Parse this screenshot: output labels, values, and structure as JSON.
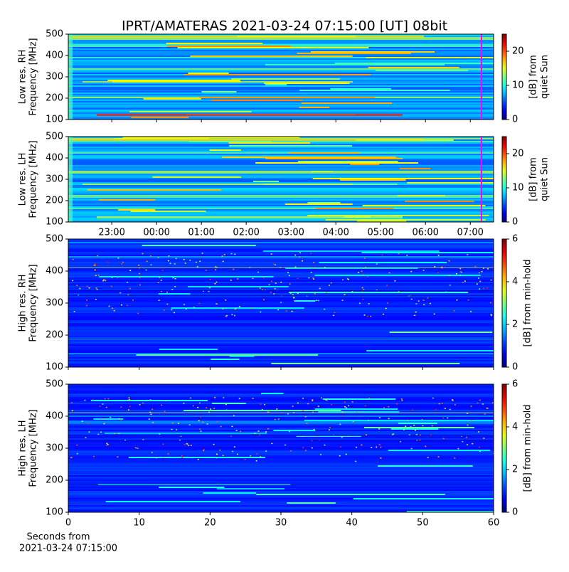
{
  "title": "IPRT/AMATERAS 2021-03-24 07:15:00 [UT]   08bit",
  "chart_data": [
    {
      "type": "heatmap",
      "ylabel": [
        "Low res. RH",
        "Frequency [MHz]"
      ],
      "ylim": [
        100,
        500
      ],
      "yticks": [
        100,
        200,
        300,
        400,
        500
      ],
      "colormap": "jet",
      "clim": [
        0,
        25
      ],
      "cticks": [
        0,
        10,
        20
      ],
      "colorbar_label": [
        "[dB] from",
        "quiet Sun"
      ],
      "marker": {
        "x": 31.25,
        "color": "#ff00ff"
      }
    },
    {
      "type": "heatmap",
      "ylabel": [
        "Low res. LH",
        "Frequency [MHz]"
      ],
      "ylim": [
        100,
        500
      ],
      "yticks": [
        100,
        200,
        300,
        400,
        500
      ],
      "xlim": [
        22.03,
        31.52
      ],
      "xticks": [
        {
          "value": 23,
          "label": "23:00"
        },
        {
          "value": 24,
          "label": "00:00"
        },
        {
          "value": 25,
          "label": "01:00"
        },
        {
          "value": 26,
          "label": "02:00"
        },
        {
          "value": 27,
          "label": "03:00"
        },
        {
          "value": 28,
          "label": "04:00"
        },
        {
          "value": 29,
          "label": "05:00"
        },
        {
          "value": 30,
          "label": "06:00"
        },
        {
          "value": 31,
          "label": "07:00"
        }
      ],
      "colormap": "jet",
      "clim": [
        0,
        25
      ],
      "cticks": [
        0,
        10,
        20
      ],
      "colorbar_label": [
        "[dB] from",
        "quiet Sun"
      ],
      "marker": {
        "x": 31.25,
        "color": "#ff00ff"
      }
    },
    {
      "type": "heatmap",
      "ylabel": [
        "High res. RH",
        "Frequency [MHz]"
      ],
      "ylim": [
        100,
        500
      ],
      "yticks": [
        100,
        200,
        300,
        400,
        500
      ],
      "colormap": "jet",
      "clim": [
        0,
        6
      ],
      "cticks": [
        0,
        2,
        4,
        6
      ],
      "colorbar_label": [
        "[dB] from min-hold"
      ]
    },
    {
      "type": "heatmap",
      "ylabel": [
        "High res. LH",
        "Frequency [MHz]"
      ],
      "ylim": [
        100,
        500
      ],
      "yticks": [
        100,
        200,
        300,
        400,
        500
      ],
      "xlim": [
        0,
        60
      ],
      "xticks": [
        0,
        10,
        20,
        30,
        40,
        50,
        60
      ],
      "xlabel": [
        "Seconds from",
        "2021-03-24 07:15:00"
      ],
      "colormap": "jet",
      "clim": [
        0,
        6
      ],
      "cticks": [
        0,
        2,
        4,
        6
      ],
      "colorbar_label": [
        "[dB] from min-hold"
      ]
    }
  ]
}
